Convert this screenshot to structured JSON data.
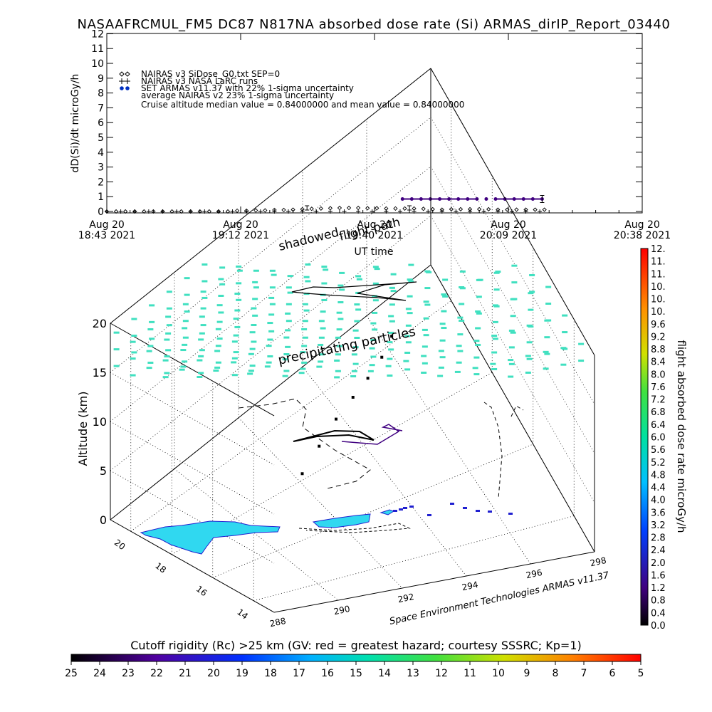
{
  "title": "NASAAFRCMUL_FM5 DC87 N817NA absorbed dose rate (Si) ARMAS_dirIP_Report_03440",
  "credit": "Space Environment Technologies ARMAS v11.37",
  "annotations": {
    "shadowed": "shadowed",
    "flight_path": "flight path",
    "precipitating": "precipitating particles"
  },
  "colors": {
    "nairas_v3": "#000000",
    "armas": "#400080",
    "armas_legend": "#0030c0",
    "particles": "#40e0c0",
    "land": "#30d8f0",
    "land_edge": "#2020d0",
    "grid": "#000000"
  },
  "chart_data": [
    {
      "type": "scatter",
      "title": "NASAAFRCMUL_FM5 DC87 N817NA absorbed dose rate (Si) ARMAS_dirIP_Report_03440",
      "xlabel": "UT time",
      "ylabel": "dD(Si)/dt microGy/h",
      "ylim": [
        0,
        12
      ],
      "yticks": [
        "0",
        "1",
        "2",
        "3",
        "4",
        "5",
        "6",
        "7",
        "8",
        "9",
        "10",
        "11",
        "12"
      ],
      "xticks": [
        {
          "line1": "Aug 20",
          "line2": "18:43 2021"
        },
        {
          "line1": "Aug 20",
          "line2": "19:12 2021"
        },
        {
          "line1": "Aug 20",
          "line2": "19:40 2021"
        },
        {
          "line1": "Aug 20",
          "line2": "20:09 2021"
        },
        {
          "line1": "Aug 20",
          "line2": "20:38 2021"
        }
      ],
      "xrange_minutes": [
        0,
        115
      ],
      "legend_placement": "top-left",
      "legend": [
        {
          "symbol": "◇",
          "label": "NAIRAS v3 SiDose_G0.txt SEP=0"
        },
        {
          "symbol": "+",
          "label": "NAIRAS v3 NASA LaRC runs"
        },
        {
          "symbol": "●",
          "label": "SET ARMAS v11.37 with 22% 1-sigma uncertainty"
        },
        {
          "symbol": "",
          "label": "average NAIRAS v2 23% 1-sigma uncertainty"
        },
        {
          "symbol": "",
          "label": "Cruise altitude median value = 0.84000000 and mean value = 0.84000000"
        }
      ],
      "series": [
        {
          "name": "NAIRAS v3 SiDose_G0.txt SEP=0",
          "x_minutes": [
            0,
            2,
            4,
            6,
            8,
            10,
            12,
            14,
            16,
            18,
            20,
            22,
            24,
            26,
            28,
            30,
            32,
            34,
            36,
            38,
            40,
            42,
            44,
            46,
            48,
            50,
            52,
            54,
            56,
            58,
            60,
            62,
            64,
            66,
            68,
            70,
            72,
            74,
            76,
            78,
            80,
            82,
            84,
            86,
            88,
            90,
            92,
            94
          ],
          "values": [
            0,
            0,
            0,
            0,
            0,
            0,
            0,
            0,
            0,
            0,
            0,
            0,
            0,
            0,
            0.05,
            0.05,
            0.07,
            0.07,
            0.1,
            0.1,
            0.12,
            0.15,
            0.18,
            0.2,
            0.22,
            0.24,
            0.24,
            0.24,
            0.22,
            0.22,
            0.2,
            0.2,
            0.2,
            0.2,
            0.18,
            0.15,
            0.12,
            0.15,
            0.15,
            0.15,
            0.15,
            0.15,
            0.12,
            0.12,
            0.12,
            0.12,
            0.12,
            0.12
          ]
        },
        {
          "name": "NAIRAS v3 NASA LaRC runs",
          "x_minutes": [
            0,
            3,
            6,
            9,
            12,
            15,
            18,
            21,
            24,
            27,
            30,
            33,
            36,
            39,
            42,
            45,
            48,
            51,
            54,
            57,
            60,
            63,
            66,
            69,
            72,
            75,
            78,
            81,
            84,
            87,
            90,
            93
          ],
          "values": [
            0,
            0,
            0,
            0,
            0,
            0,
            0,
            0,
            0,
            0,
            0,
            0,
            0,
            0,
            0,
            0,
            0,
            0,
            0,
            0,
            0,
            0,
            0,
            0,
            0,
            0,
            0,
            0,
            0,
            0,
            0,
            0
          ]
        },
        {
          "name": "SET ARMAS v11.37 with 22% 1-sigma uncertainty",
          "x_minutes": [
            63.5,
            65.5,
            67.5,
            69.5,
            71.5,
            73.5,
            75.5,
            77.5,
            79.5,
            81.5,
            83.5,
            85.5,
            87.5,
            89.5,
            91.5,
            93.5
          ],
          "values": [
            0.84,
            0.84,
            0.84,
            0.84,
            0.84,
            0.84,
            0.84,
            0.84,
            0.84,
            0.84,
            0.84,
            0.84,
            0.84,
            0.84,
            0.84,
            0.84
          ]
        }
      ]
    },
    {
      "type": "scatter",
      "title": "",
      "zlabel": "Altitude (km)",
      "zticks": [
        "0",
        "5",
        "10",
        "15",
        "20"
      ],
      "zlim": [
        0,
        20
      ],
      "lat_ticks": [
        "14",
        "16",
        "18",
        "20"
      ],
      "lon_ticks": [
        "288",
        "290",
        "292",
        "294",
        "296",
        "298"
      ],
      "lon_range": [
        288,
        298
      ],
      "lat_range": [
        13,
        21
      ],
      "flight_path": [
        {
          "lon": 292.2,
          "lat": 18.2,
          "alt": 0
        },
        {
          "lon": 292.6,
          "lat": 18.0,
          "alt": 2.5
        },
        {
          "lon": 293.0,
          "lat": 17.8,
          "alt": 5.0
        },
        {
          "lon": 293.4,
          "lat": 17.6,
          "alt": 7.0
        },
        {
          "lon": 293.8,
          "lat": 17.5,
          "alt": 8.5
        },
        {
          "lon": 294.3,
          "lat": 17.6,
          "alt": 9.5
        },
        {
          "lon": 294.8,
          "lat": 17.9,
          "alt": 9.9
        }
      ],
      "colorbar": {
        "label": "flight absorbed dose rate microGy/h",
        "ticks": [
          "0.0",
          "0.4",
          "0.8",
          "1.2",
          "1.6",
          "2.0",
          "2.4",
          "2.8",
          "3.2",
          "3.6",
          "4.0",
          "4.4",
          "4.8",
          "5.2",
          "5.6",
          "6.0",
          "6.4",
          "6.8",
          "7.2",
          "7.6",
          "8.0",
          "8.4",
          "8.8",
          "9.2",
          "9.6",
          "10.",
          "10.",
          "10.",
          "11.",
          "11.",
          "12."
        ]
      },
      "cutoff_bar": {
        "label": "Cutoff rigidity (Rc) >25 km (GV: red = greatest hazard; courtesy SSSRC; Kp=1)",
        "ticks": [
          "25",
          "24",
          "23",
          "22",
          "21",
          "20",
          "19",
          "18",
          "17",
          "16",
          "15",
          "14",
          "13",
          "12",
          "11",
          "10",
          "9",
          "8",
          "7",
          "6",
          "5"
        ]
      }
    }
  ]
}
